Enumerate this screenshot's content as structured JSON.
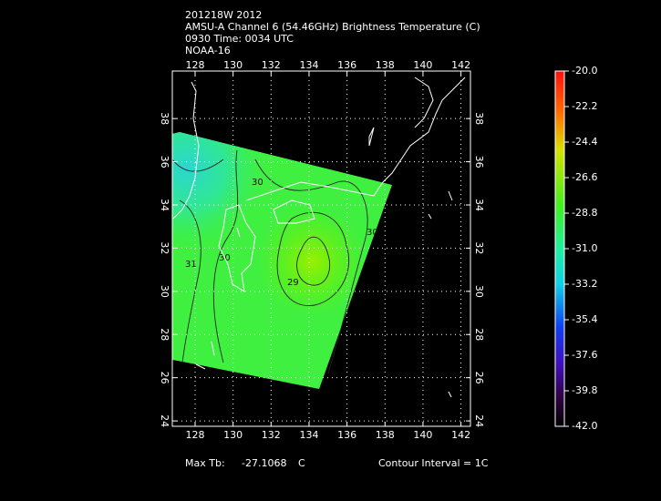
{
  "header": {
    "lines": [
      "201218W 2012",
      "AMSU-A Channel 6 (54.46GHz) Brightness Temperature (C)",
      "0930 Time: 0034 UTC",
      "NOAA-16"
    ]
  },
  "map": {
    "lonlim": [
      126.8,
      142.5
    ],
    "latlim": [
      23.75,
      40.2
    ],
    "lonticks": [
      128,
      130,
      132,
      134,
      136,
      138,
      140,
      142
    ],
    "latticks": [
      24,
      26,
      28,
      30,
      32,
      34,
      36,
      38
    ],
    "grid": true,
    "contour_labels": [
      "30",
      "30",
      "31",
      "29",
      "30"
    ]
  },
  "colorbar": {
    "lim": [
      -42,
      -20
    ],
    "ticks": [
      {
        "value": -20,
        "label": "-20.0"
      },
      {
        "value": -22.2,
        "label": "-22.2"
      },
      {
        "value": -24.4,
        "label": "-24.4"
      },
      {
        "value": -26.6,
        "label": "-26.6"
      },
      {
        "value": -28.8,
        "label": "-28.8"
      },
      {
        "value": -31,
        "label": "-31.0"
      },
      {
        "value": -33.2,
        "label": "-33.2"
      },
      {
        "value": -35.4,
        "label": "-35.4"
      },
      {
        "value": -37.6,
        "label": "-37.6"
      },
      {
        "value": -39.8,
        "label": "-39.8"
      },
      {
        "value": -42,
        "label": "-42.0"
      }
    ]
  },
  "footer": {
    "max_label": "Max Tb:",
    "max_value": -27.1068,
    "max_unit": "C",
    "contour_interval": "Contour Interval = 1C"
  }
}
